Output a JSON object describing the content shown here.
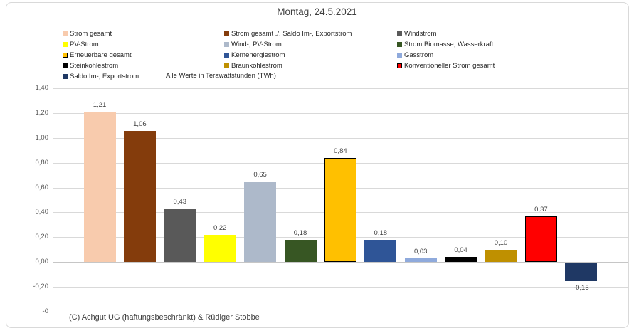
{
  "title": "Montag, 24.5.2021",
  "subtitle": "Alle Werte in Terawattstunden (TWh)",
  "footer": "(C) Achgut UG (haftungsbeschränkt) & Rüdiger Stobbe",
  "chart_data": {
    "type": "bar",
    "title": "Montag, 24.5.2021",
    "xlabel": "",
    "ylabel": "TWh",
    "ylim": [
      -0.4,
      1.4
    ],
    "grid": true,
    "legend_position": "top",
    "categories": [
      "Strom gesamt",
      "Strom gesamt ./. Saldo Im-, Exportstrom",
      "Windstrom",
      "PV-Strom",
      "Wind-, PV-Strom",
      "Strom Biomasse, Wasserkraft",
      "Erneuerbare gesamt",
      "Kernenergiestrom",
      "Gasstrom",
      "Steinkohlestrom",
      "Braunkohlestrom",
      "Konventioneller Strom gesamt",
      "Saldo Im-, Exportstrom"
    ],
    "values": [
      1.21,
      1.06,
      0.43,
      0.22,
      0.65,
      0.18,
      0.84,
      0.18,
      0.03,
      0.04,
      0.1,
      0.37,
      -0.15
    ],
    "value_labels": [
      "1,21",
      "1,06",
      "0,43",
      "0,22",
      "0,65",
      "0,18",
      "0,84",
      "0,18",
      "0,03",
      "0,04",
      "0,10",
      "0,37",
      "-0,15"
    ],
    "colors": [
      "#F8CBAD",
      "#843C0C",
      "#595959",
      "#FFFF00",
      "#ADB9CA",
      "#375623",
      "#FFC000",
      "#2F5597",
      "#8FAADC",
      "#000000",
      "#BF9000",
      "#FF0000",
      "#1F3864"
    ],
    "outlined": [
      false,
      false,
      false,
      false,
      false,
      false,
      true,
      false,
      false,
      false,
      false,
      true,
      false
    ],
    "yticks": [
      {
        "value": 1.4,
        "label": "1,40",
        "partial": false
      },
      {
        "value": 1.2,
        "label": "1,20",
        "partial": false
      },
      {
        "value": 1.0,
        "label": "1,00",
        "partial": false
      },
      {
        "value": 0.8,
        "label": "0,80",
        "partial": false
      },
      {
        "value": 0.6,
        "label": "0,60",
        "partial": false
      },
      {
        "value": 0.4,
        "label": "0,40",
        "partial": false
      },
      {
        "value": 0.2,
        "label": "0,20",
        "partial": false
      },
      {
        "value": 0.0,
        "label": "0,00",
        "partial": false
      },
      {
        "value": -0.2,
        "label": "-0,20",
        "partial": false
      },
      {
        "value": -0.4,
        "label": "-0",
        "partial": true
      }
    ]
  }
}
